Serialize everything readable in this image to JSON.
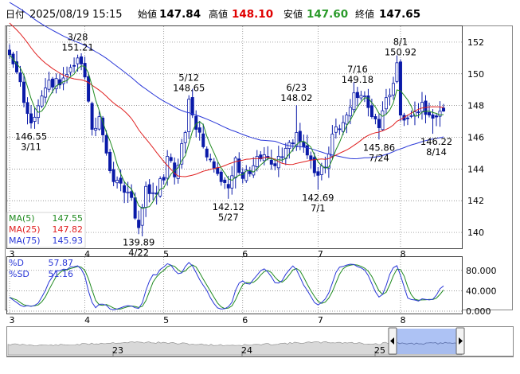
{
  "header": {
    "date_label": "日付",
    "datetime": "2025/08/19 15:15",
    "open_label": "始値",
    "open": "147.84",
    "high_label": "高値",
    "high": "148.10",
    "low_label": "安値",
    "low": "147.60",
    "close_label": "終値",
    "close": "147.65"
  },
  "colors": {
    "candle": "#0a1aa8",
    "ma5": "#1f8a1f",
    "ma25": "#e02020",
    "ma75": "#2a38d8",
    "grid": "#777777",
    "high_value": "#e00000",
    "low_value": "#2a9a2a",
    "scroll_highlight": "#9fb7f2"
  },
  "chart_data": [
    {
      "type": "candlestick",
      "x_ticks": [
        "3",
        "4",
        "5",
        "6",
        "7",
        "8"
      ],
      "y_ticks": [
        140,
        142,
        144,
        146,
        148,
        150,
        152
      ],
      "ylim": [
        139,
        153
      ],
      "grid": true,
      "legend": [
        {
          "name": "MA(5)",
          "value": "147.55"
        },
        {
          "name": "MA(25)",
          "value": "147.82"
        },
        {
          "name": "MA(75)",
          "value": "145.93"
        }
      ],
      "annotations": [
        {
          "date": "3/11",
          "value": "146.55",
          "position": "below"
        },
        {
          "date": "3/28",
          "value": "151.21",
          "position": "above"
        },
        {
          "date": "4/22",
          "value": "139.89",
          "position": "below"
        },
        {
          "date": "5/12",
          "value": "148.65",
          "position": "above"
        },
        {
          "date": "5/27",
          "value": "142.12",
          "position": "below"
        },
        {
          "date": "6/23",
          "value": "148.02",
          "position": "above"
        },
        {
          "date": "7/1",
          "value": "142.69",
          "position": "below"
        },
        {
          "date": "7/16",
          "value": "149.18",
          "position": "above"
        },
        {
          "date": "7/24",
          "value": "145.86",
          "position": "below"
        },
        {
          "date": "8/1",
          "value": "150.92",
          "position": "above"
        },
        {
          "date": "8/14",
          "value": "146.22",
          "position": "below"
        }
      ],
      "close_path": [
        [
          "3/3",
          151.2
        ],
        [
          "3/6",
          149.5
        ],
        [
          "3/10",
          147.5
        ],
        [
          "3/11",
          146.9
        ],
        [
          "3/14",
          148.6
        ],
        [
          "3/18",
          149.6
        ],
        [
          "3/21",
          149.3
        ],
        [
          "3/26",
          150.4
        ],
        [
          "3/28",
          151.0
        ],
        [
          "4/1",
          149.8
        ],
        [
          "4/3",
          146.5
        ],
        [
          "4/7",
          147.3
        ],
        [
          "4/9",
          145.0
        ],
        [
          "4/11",
          143.2
        ],
        [
          "4/15",
          143.1
        ],
        [
          "4/18",
          142.2
        ],
        [
          "4/21",
          140.9
        ],
        [
          "4/22",
          140.3
        ],
        [
          "4/24",
          142.9
        ],
        [
          "4/28",
          142.5
        ],
        [
          "5/1",
          143.3
        ],
        [
          "5/2",
          144.8
        ],
        [
          "5/6",
          143.5
        ],
        [
          "5/8",
          145.6
        ],
        [
          "5/9",
          146.3
        ],
        [
          "5/12",
          148.4
        ],
        [
          "5/14",
          146.5
        ],
        [
          "5/16",
          145.4
        ],
        [
          "5/20",
          144.6
        ],
        [
          "5/23",
          143.2
        ],
        [
          "5/27",
          142.8
        ],
        [
          "5/29",
          144.7
        ],
        [
          "6/2",
          143.4
        ],
        [
          "6/4",
          143.7
        ],
        [
          "6/6",
          144.8
        ],
        [
          "6/10",
          144.9
        ],
        [
          "6/13",
          144.2
        ],
        [
          "6/16",
          144.8
        ],
        [
          "6/18",
          145.3
        ],
        [
          "6/20",
          145.6
        ],
        [
          "6/23",
          146.3
        ],
        [
          "6/25",
          145.4
        ],
        [
          "6/27",
          144.6
        ],
        [
          "7/1",
          143.6
        ],
        [
          "7/3",
          144.1
        ],
        [
          "7/7",
          146.2
        ],
        [
          "7/9",
          146.5
        ],
        [
          "7/11",
          147.4
        ],
        [
          "7/15",
          148.8
        ],
        [
          "7/16",
          148.5
        ],
        [
          "7/18",
          148.6
        ],
        [
          "7/22",
          147.3
        ],
        [
          "7/24",
          146.6
        ],
        [
          "7/28",
          148.5
        ],
        [
          "7/30",
          149.4
        ],
        [
          "7/31",
          150.7
        ],
        [
          "8/1",
          147.4
        ],
        [
          "8/5",
          147.2
        ],
        [
          "8/7",
          147.6
        ],
        [
          "8/11",
          148.2
        ],
        [
          "8/13",
          147.4
        ],
        [
          "8/14",
          147.2
        ],
        [
          "8/19",
          147.65
        ]
      ]
    },
    {
      "type": "line",
      "x_ticks": [
        "3",
        "4",
        "5",
        "6",
        "7",
        "8"
      ],
      "y_ticks": [
        "0.000",
        "40.000",
        "80.000"
      ],
      "ylim": [
        0,
        100
      ],
      "series": [
        {
          "name": "%D",
          "value": "57.87"
        },
        {
          "name": "%SD",
          "value": "51.16"
        }
      ]
    },
    {
      "type": "area",
      "x_ticks": [
        "23",
        "24",
        "25"
      ],
      "description": "overview navigator"
    }
  ]
}
